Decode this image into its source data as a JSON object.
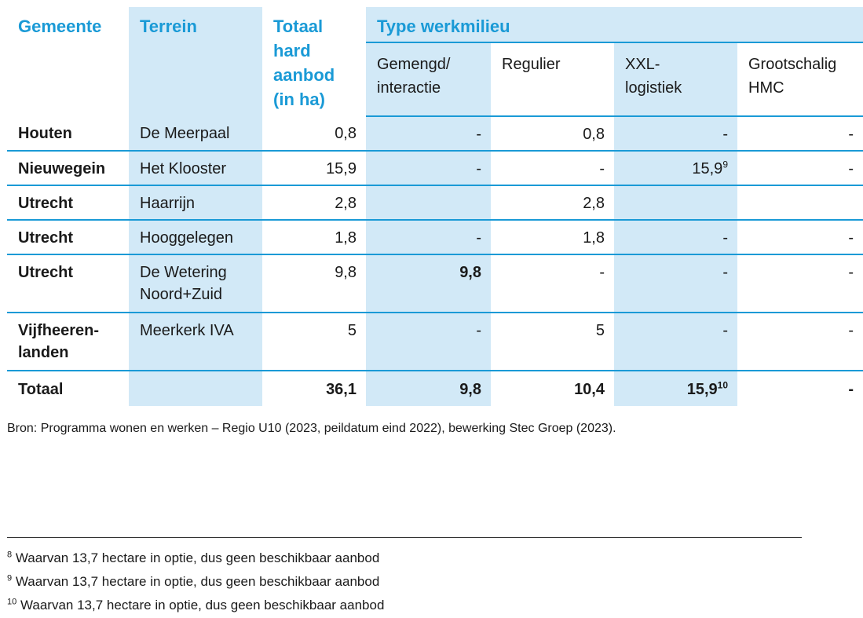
{
  "headers": {
    "gemeente": "Gemeente",
    "terrein": "Terrein",
    "totaal_hard_aanbod": [
      "Totaal",
      "hard",
      "aanbod",
      "(in ha)"
    ],
    "type_werkmilieu": "Type werkmilieu",
    "sub": [
      [
        "Gemengd/",
        "interactie"
      ],
      [
        "Regulier"
      ],
      [
        "XXL-",
        "logistiek"
      ],
      [
        "Grootschalig",
        "HMC"
      ]
    ]
  },
  "rows": [
    {
      "gemeente": [
        "Houten"
      ],
      "terrein": [
        "De Meerpaal"
      ],
      "totaal": "0,8",
      "gemengd": "-",
      "regulier": "0,8",
      "xxl": "-",
      "xxl_sup": "",
      "hmc": "-"
    },
    {
      "gemeente": [
        "Nieuwegein"
      ],
      "terrein": [
        "Het Klooster"
      ],
      "totaal": "15,9",
      "gemengd": "-",
      "regulier": "-",
      "xxl": "15,9",
      "xxl_sup": "9",
      "hmc": "-"
    },
    {
      "gemeente": [
        "Utrecht"
      ],
      "terrein": [
        "Haarrijn"
      ],
      "totaal": "2,8",
      "gemengd": "",
      "regulier": "2,8",
      "xxl": "",
      "xxl_sup": "",
      "hmc": ""
    },
    {
      "gemeente": [
        "Utrecht"
      ],
      "terrein": [
        "Hooggelegen"
      ],
      "totaal": "1,8",
      "gemengd": "-",
      "regulier": "1,8",
      "xxl": "-",
      "xxl_sup": "",
      "hmc": "-"
    },
    {
      "gemeente": [
        "Utrecht"
      ],
      "terrein": [
        "De Wetering",
        "Noord+Zuid"
      ],
      "totaal": "9,8",
      "gemengd": "9,8",
      "regulier": "-",
      "xxl": "-",
      "xxl_sup": "",
      "hmc": "-"
    },
    {
      "gemeente": [
        "Vijfheeren-",
        "landen"
      ],
      "terrein": [
        "Meerkerk IVA"
      ],
      "totaal": "5",
      "gemengd": "-",
      "regulier": "5",
      "xxl": "-",
      "xxl_sup": "",
      "hmc": "-"
    }
  ],
  "total": {
    "label": "Totaal",
    "terrein": "",
    "totaal": "36,1",
    "gemengd": "9,8",
    "regulier": "10,4",
    "xxl": "15,9",
    "xxl_sup": "10",
    "hmc": "-"
  },
  "source": "Bron: Programma wonen en werken – Regio U10 (2023, peildatum eind 2022), bewerking Stec Groep (2023).",
  "footnotes": [
    {
      "num": "8",
      "text": "Waarvan 13,7 hectare in optie, dus geen beschikbaar aanbod"
    },
    {
      "num": "9",
      "text": "Waarvan 13,7 hectare in optie, dus geen beschikbaar aanbod"
    },
    {
      "num": "10",
      "text": "Waarvan 13,7 hectare in optie, dus geen beschikbaar aanbod"
    }
  ],
  "colors": {
    "accent": "#1a9ad6",
    "shade": "#d2e9f7"
  }
}
